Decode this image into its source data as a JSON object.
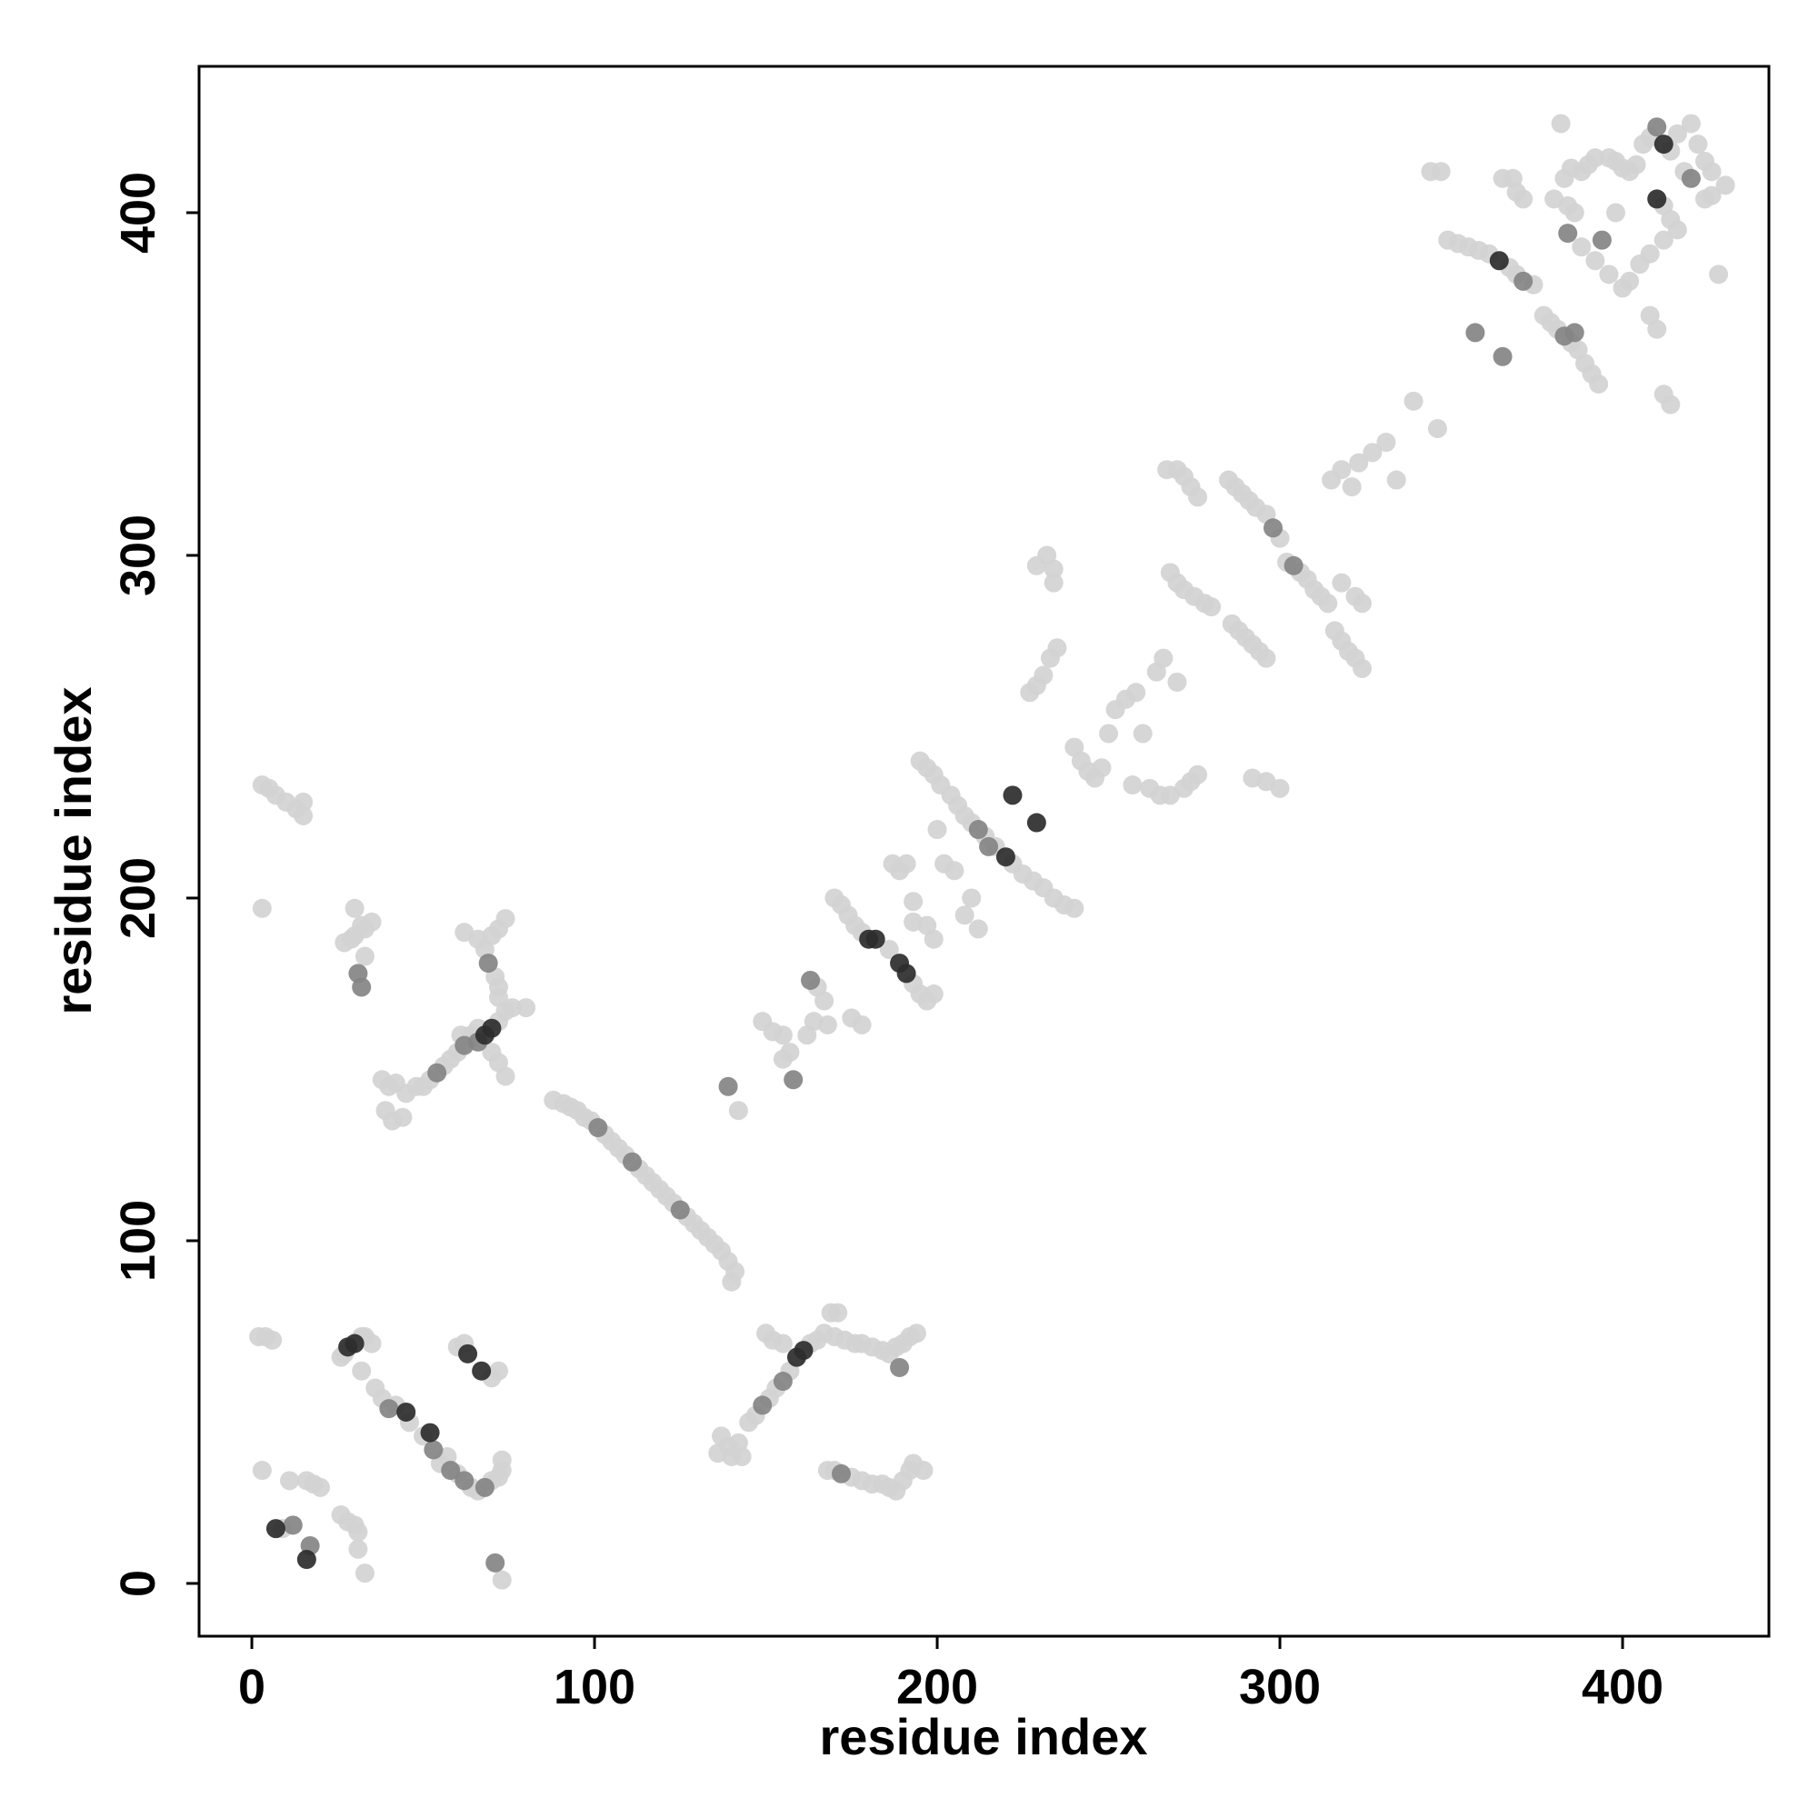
{
  "chart_data": {
    "type": "scatter",
    "xlabel": "residue index",
    "ylabel": "residue index",
    "xlim": [
      -15.4,
      442.7
    ],
    "ylim": [
      -15.4,
      442.7
    ],
    "xticks": [
      0,
      100,
      200,
      300,
      400
    ],
    "yticks": [
      0,
      100,
      200,
      300,
      400
    ],
    "grid": false,
    "series": [
      {
        "color": "#d2d2d2",
        "x": [
          2,
          4,
          6,
          3,
          5,
          7,
          10,
          13,
          15,
          15,
          3,
          3,
          9,
          11,
          16,
          18,
          20,
          26,
          28,
          30,
          31,
          31,
          33,
          27,
          29,
          30,
          33,
          35,
          32,
          30,
          33,
          26,
          27,
          32,
          33,
          35,
          32,
          36,
          38,
          42,
          46,
          50,
          55,
          57,
          60,
          64,
          66,
          70,
          72,
          73,
          73,
          60,
          62,
          70,
          72,
          73,
          38,
          40,
          42,
          39,
          41,
          44,
          45,
          48,
          50,
          52,
          56,
          58,
          60,
          64,
          72,
          74,
          76,
          80,
          61,
          64,
          66,
          62,
          66,
          68,
          71,
          72,
          72,
          70,
          72,
          74,
          70,
          72,
          74,
          88,
          91,
          93,
          95,
          97,
          99,
          103,
          105,
          107,
          109,
          113,
          115,
          117,
          119,
          121,
          123,
          127,
          129,
          131,
          133,
          135,
          137,
          139,
          141,
          140,
          137,
          139,
          136,
          140,
          143,
          142,
          145,
          147,
          151,
          153,
          157,
          163,
          165,
          167,
          169,
          171,
          150,
          152,
          155,
          170,
          173,
          176,
          178,
          181,
          184,
          186,
          188,
          190,
          192,
          194,
          168,
          170,
          175,
          178,
          181,
          184,
          186,
          188,
          190,
          192,
          193,
          196,
          142,
          149,
          152,
          155,
          155,
          157,
          165,
          167,
          162,
          164,
          168,
          170,
          172,
          174,
          176,
          178,
          186,
          193,
          195,
          197,
          199,
          175,
          178,
          187,
          189,
          191,
          193,
          193,
          197,
          199,
          195,
          197,
          199,
          201,
          204,
          206,
          208,
          210,
          214,
          217,
          222,
          225,
          228,
          231,
          234,
          237,
          240,
          200,
          202,
          205,
          208,
          210,
          212,
          227,
          229,
          231,
          233,
          235,
          229,
          232,
          234,
          234,
          240,
          242,
          244,
          246,
          248,
          250,
          252,
          255,
          260,
          257,
          262,
          265,
          268,
          272,
          274,
          276,
          258,
          264,
          266,
          270,
          267,
          270,
          272,
          274,
          276,
          268,
          270,
          272,
          275,
          278,
          280,
          285,
          287,
          289,
          291,
          293,
          296,
          300,
          286,
          288,
          290,
          292,
          294,
          296,
          292,
          296,
          300,
          302,
          306,
          308,
          310,
          312,
          314,
          318,
          322,
          324,
          316,
          318,
          320,
          322,
          324,
          315,
          318,
          321,
          323,
          327,
          331,
          334,
          339,
          346,
          344,
          347,
          349,
          352,
          355,
          358,
          361,
          367,
          369,
          374,
          377,
          379,
          381,
          385,
          387,
          389,
          391,
          393,
          382,
          385,
          388,
          390,
          392,
          396,
          398,
          400,
          402,
          404,
          406,
          408,
          414,
          416,
          420,
          422,
          424,
          426,
          426,
          418,
          412,
          414,
          416,
          412,
          408,
          405,
          402,
          400,
          396,
          392,
          388,
          386,
          384,
          380,
          383,
          398,
          408,
          410,
          412,
          414,
          428,
          430,
          424,
          365,
          368,
          369,
          371
        ],
        "values": [
          72,
          72,
          71,
          233,
          232,
          230,
          228,
          226,
          228,
          224,
          197,
          33,
          16,
          30,
          30,
          29,
          28,
          20,
          18,
          17,
          15,
          10,
          3,
          187,
          188,
          189,
          191,
          193,
          192,
          197,
          183,
          66,
          67,
          72,
          72,
          70,
          62,
          57,
          54,
          52,
          47,
          43,
          35,
          37,
          32,
          28,
          27,
          30,
          31,
          33,
          36,
          69,
          70,
          60,
          62,
          1,
          147,
          145,
          146,
          138,
          135,
          136,
          143,
          145,
          145,
          147,
          151,
          153,
          155,
          159,
          164,
          167,
          168,
          168,
          160,
          160,
          162,
          190,
          188,
          185,
          177,
          174,
          171,
          189,
          191,
          194,
          155,
          152,
          148,
          141,
          140,
          139,
          138,
          136,
          135,
          131,
          129,
          127,
          125,
          121,
          119,
          117,
          115,
          113,
          111,
          107,
          105,
          103,
          101,
          99,
          97,
          94,
          91,
          88,
          43,
          40,
          38,
          37,
          37,
          41,
          47,
          49,
          54,
          57,
          62,
          70,
          71,
          73,
          79,
          79,
          73,
          71,
          70,
          72,
          71,
          70,
          70,
          69,
          68,
          67,
          69,
          70,
          72,
          73,
          33,
          33,
          31,
          30,
          29,
          29,
          28,
          27,
          30,
          33,
          35,
          33,
          138,
          164,
          161,
          160,
          153,
          155,
          174,
          170,
          160,
          164,
          163,
          200,
          198,
          195,
          192,
          190,
          185,
          175,
          172,
          170,
          172,
          165,
          163,
          210,
          208,
          210,
          199,
          193,
          192,
          188,
          240,
          238,
          236,
          233,
          230,
          227,
          224,
          222,
          218,
          215,
          210,
          207,
          205,
          203,
          200,
          198,
          197,
          220,
          210,
          208,
          195,
          200,
          191,
          260,
          262,
          265,
          270,
          273,
          297,
          300,
          296,
          292,
          244,
          240,
          237,
          235,
          238,
          248,
          255,
          258,
          248,
          233,
          232,
          230,
          230,
          232,
          234,
          236,
          260,
          266,
          270,
          263,
          325,
          325,
          323,
          320,
          317,
          295,
          292,
          290,
          288,
          286,
          285,
          322,
          320,
          318,
          316,
          314,
          312,
          305,
          280,
          278,
          276,
          274,
          272,
          270,
          235,
          234,
          232,
          298,
          295,
          293,
          290,
          288,
          286,
          292,
          288,
          286,
          278,
          275,
          272,
          270,
          267,
          322,
          325,
          320,
          327,
          330,
          333,
          322,
          345,
          337,
          412,
          412,
          392,
          391,
          390,
          389,
          388,
          384,
          382,
          379,
          370,
          368,
          366,
          362,
          360,
          356,
          353,
          350,
          426,
          413,
          412,
          414,
          416,
          416,
          415,
          413,
          412,
          414,
          420,
          422,
          418,
          423,
          426,
          420,
          415,
          412,
          405,
          412,
          402,
          398,
          395,
          392,
          388,
          385,
          380,
          378,
          382,
          386,
          390,
          400,
          402,
          404,
          410,
          400,
          370,
          366,
          347,
          344,
          382,
          408,
          404,
          410,
          410,
          406,
          404
        ]
      },
      {
        "color": "#848484",
        "x": [
          12,
          17,
          31,
          32,
          40,
          62,
          68,
          71,
          54,
          62,
          66,
          69,
          101,
          111,
          125,
          149,
          155,
          172,
          189,
          139,
          163,
          212,
          298,
          304,
          371,
          357,
          365,
          383,
          410,
          420,
          384,
          394,
          53,
          58,
          158,
          215,
          386
        ],
        "values": [
          17,
          11,
          178,
          174,
          51,
          30,
          28,
          6,
          149,
          157,
          158,
          181,
          133,
          123,
          109,
          52,
          59,
          32,
          63,
          145,
          176,
          220,
          308,
          297,
          380,
          365,
          358,
          364,
          425,
          410,
          394,
          392,
          39,
          33,
          147,
          215,
          365
        ]
      },
      {
        "color": "#2c2c2c",
        "x": [
          7,
          16,
          28,
          30,
          45,
          52,
          63,
          67,
          68,
          70,
          159,
          161,
          180,
          182,
          189,
          191,
          220,
          222,
          229,
          364,
          410,
          412
        ],
        "values": [
          16,
          7,
          69,
          70,
          50,
          44,
          67,
          62,
          160,
          162,
          66,
          68,
          188,
          188,
          181,
          178,
          212,
          230,
          222,
          386,
          404,
          420
        ]
      }
    ]
  }
}
